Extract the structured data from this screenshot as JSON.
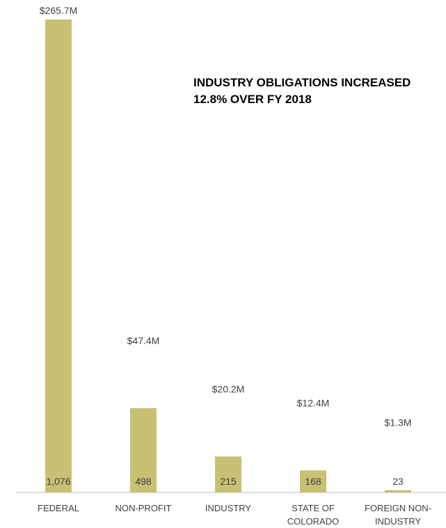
{
  "chart_data": {
    "type": "bar",
    "categories": [
      [
        "FEDERAL"
      ],
      [
        "NON-PROFIT"
      ],
      [
        "INDUSTRY"
      ],
      [
        "STATE OF",
        "COLORADO"
      ],
      [
        "FOREIGN NON-",
        "INDUSTRY"
      ]
    ],
    "values": [
      265.7,
      47.4,
      20.2,
      12.4,
      1.3
    ],
    "value_labels": [
      "$265.7M",
      "$47.4M",
      "$20.2M",
      "$12.4M",
      "$1.3M"
    ],
    "counts": [
      "1,076",
      "498",
      "215",
      "168",
      "23"
    ],
    "annotation": "INDUSTRY OBLIGATIONS INCREASED\n12.8% OVER FY 2018",
    "title": "",
    "xlabel": "",
    "ylabel": "",
    "grid": false,
    "legend": "none",
    "bar_color": "#c8c073",
    "axis_color": "#bfbfbf"
  }
}
